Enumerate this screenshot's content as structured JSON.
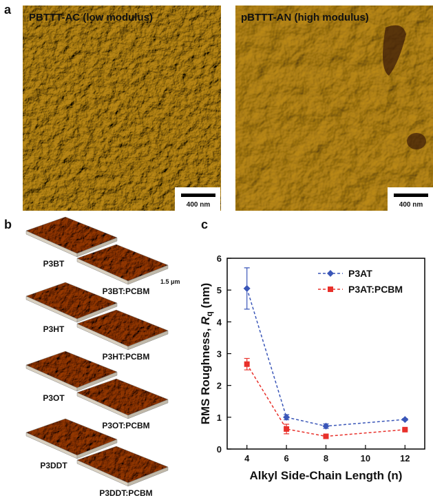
{
  "panels": {
    "a": "a",
    "b": "b",
    "c": "c"
  },
  "afm_images": [
    {
      "title": "PBTTT-AC (low modulus)",
      "scale_bar": "400 nm"
    },
    {
      "title": "pBTTT-AN (high modulus)",
      "scale_bar": "400 nm"
    }
  ],
  "afm_3d": {
    "scale": "1.5 μm",
    "samples": [
      {
        "film": "P3BT",
        "blend": "P3BT:PCBM"
      },
      {
        "film": "P3HT",
        "blend": "P3HT:PCBM"
      },
      {
        "film": "P3OT",
        "blend": "P3OT:PCBM"
      },
      {
        "film": "P3DDT",
        "blend": "P3DDT:PCBM"
      }
    ]
  },
  "chart_data": {
    "type": "line",
    "xlabel": "Alkyl Side-Chain Length (n)",
    "ylabel": {
      "text": "RMS Roughness, ",
      "symbol": "R",
      "subscript": "q",
      "unit": " (nm)"
    },
    "x": [
      4,
      6,
      8,
      12
    ],
    "xlim": [
      3,
      13
    ],
    "xticks": [
      4,
      6,
      8,
      10,
      12
    ],
    "ylim": [
      0,
      6
    ],
    "yticks": [
      0,
      1,
      2,
      3,
      4,
      5,
      6
    ],
    "legend": "upper right",
    "series": [
      {
        "name": "P3AT",
        "color": "#3a56b8",
        "marker": "diamond",
        "values": [
          5.05,
          1.0,
          0.72,
          0.93
        ],
        "errors": [
          0.65,
          0.08,
          0.07,
          0.03
        ]
      },
      {
        "name": "P3AT:PCBM",
        "color": "#e8302a",
        "marker": "square",
        "values": [
          2.67,
          0.63,
          0.4,
          0.61
        ],
        "errors": [
          0.18,
          0.15,
          0.04,
          0.02
        ]
      }
    ]
  }
}
